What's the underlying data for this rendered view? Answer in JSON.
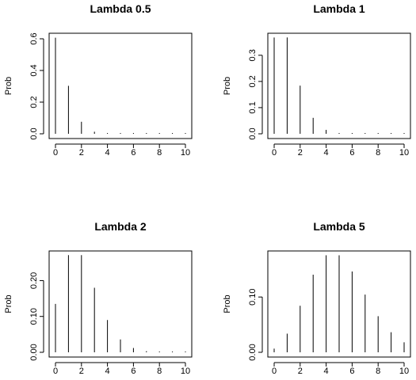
{
  "chart_data": [
    {
      "type": "bar",
      "title": "Lambda 0.5",
      "xlabel": "",
      "ylabel": "Prob",
      "x": [
        0,
        1,
        2,
        3,
        4,
        5,
        6,
        7,
        8,
        9,
        10
      ],
      "values": [
        0.607,
        0.303,
        0.076,
        0.013,
        0.002,
        0.0002,
        0.0,
        0.0,
        0.0,
        0.0,
        0.0
      ],
      "xticks": [
        "0",
        "2",
        "4",
        "6",
        "8",
        "10"
      ],
      "yticks": [
        "0.0",
        "0.2",
        "0.4",
        "0.6"
      ],
      "ylim": [
        0,
        0.62
      ]
    },
    {
      "type": "bar",
      "title": "Lambda 1",
      "xlabel": "",
      "ylabel": "Prob",
      "x": [
        0,
        1,
        2,
        3,
        4,
        5,
        6,
        7,
        8,
        9,
        10
      ],
      "values": [
        0.368,
        0.368,
        0.184,
        0.061,
        0.015,
        0.003,
        0.0005,
        0.0001,
        0.0,
        0.0,
        0.0
      ],
      "xticks": [
        "0",
        "2",
        "4",
        "6",
        "8",
        "10"
      ],
      "yticks": [
        "0.0",
        "0.1",
        "0.2",
        "0.3"
      ],
      "ylim": [
        0,
        0.375
      ]
    },
    {
      "type": "bar",
      "title": "Lambda 2",
      "xlabel": "",
      "ylabel": "Prob",
      "x": [
        0,
        1,
        2,
        3,
        4,
        5,
        6,
        7,
        8,
        9,
        10
      ],
      "values": [
        0.135,
        0.271,
        0.271,
        0.18,
        0.09,
        0.036,
        0.012,
        0.003,
        0.0009,
        0.0002,
        0.0
      ],
      "xticks": [
        "0",
        "2",
        "4",
        "6",
        "8",
        "10"
      ],
      "yticks": [
        "0.00",
        "0.10",
        "0.20"
      ],
      "ylim": [
        0,
        0.276
      ]
    },
    {
      "type": "bar",
      "title": "Lambda 5",
      "xlabel": "",
      "ylabel": "Prob",
      "x": [
        0,
        1,
        2,
        3,
        4,
        5,
        6,
        7,
        8,
        9,
        10
      ],
      "values": [
        0.0067,
        0.0337,
        0.0842,
        0.1404,
        0.1755,
        0.1755,
        0.1462,
        0.1044,
        0.0653,
        0.0363,
        0.0181
      ],
      "xticks": [
        "0",
        "2",
        "4",
        "6",
        "8",
        "10"
      ],
      "yticks": [
        "0.00",
        "0.10"
      ],
      "ylim": [
        0,
        0.179
      ]
    }
  ]
}
